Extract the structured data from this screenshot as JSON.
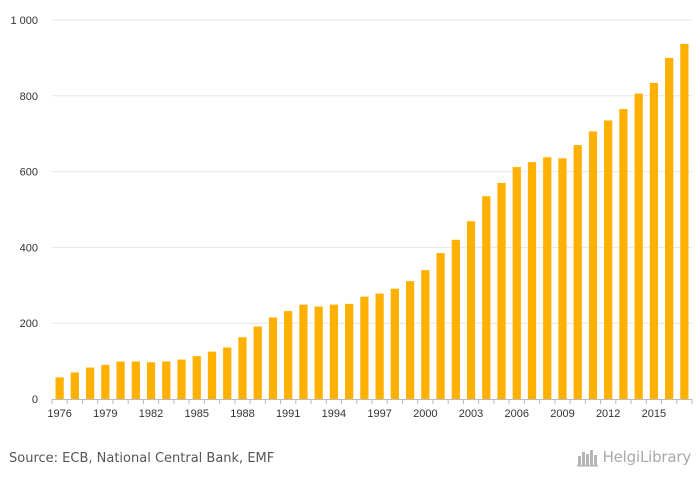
{
  "chart_data": {
    "type": "bar",
    "categories": [
      "1976",
      "1977",
      "1978",
      "1979",
      "1980",
      "1981",
      "1982",
      "1983",
      "1984",
      "1985",
      "1986",
      "1987",
      "1988",
      "1989",
      "1990",
      "1991",
      "1992",
      "1993",
      "1994",
      "1995",
      "1996",
      "1997",
      "1998",
      "1999",
      "2000",
      "2001",
      "2002",
      "2003",
      "2004",
      "2005",
      "2006",
      "2007",
      "2008",
      "2009",
      "2010",
      "2011",
      "2012",
      "2013",
      "2014",
      "2015",
      "2016",
      "2017"
    ],
    "values": [
      57,
      70,
      83,
      90,
      99,
      99,
      97,
      99,
      104,
      113,
      125,
      136,
      163,
      191,
      215,
      232,
      249,
      244,
      249,
      251,
      270,
      278,
      291,
      311,
      340,
      385,
      420,
      469,
      535,
      570,
      612,
      625,
      638,
      635,
      670,
      706,
      735,
      765,
      806,
      834,
      900,
      937
    ],
    "x_tick_labels": [
      "1976",
      "1979",
      "1982",
      "1985",
      "1988",
      "1991",
      "1994",
      "1997",
      "2000",
      "2003",
      "2006",
      "2009",
      "2012",
      "2015"
    ],
    "y_ticks": [
      0,
      200,
      400,
      600,
      800,
      1000
    ],
    "y_tick_labels": [
      "0",
      "200",
      "400",
      "600",
      "800",
      "1 000"
    ],
    "ylim": [
      0,
      1000
    ],
    "grid": true,
    "bar_color": "#ffb000",
    "grid_color": "#e6e6e6",
    "axis_color": "#bbbbbb"
  },
  "footer": {
    "source": "Source: ECB, National Central Bank, EMF",
    "brand": "HelgiLibrary",
    "brand_icon": "helgilibrary-logo-icon"
  }
}
